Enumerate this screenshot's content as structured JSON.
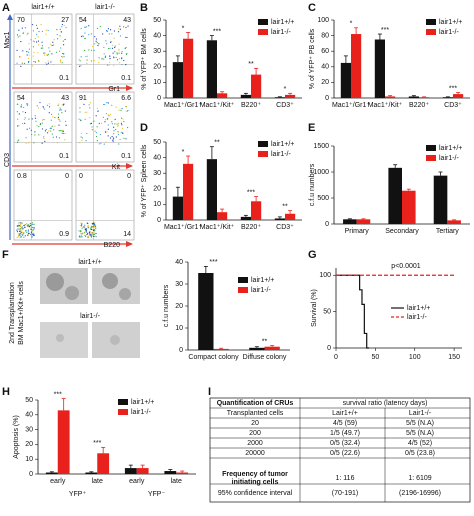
{
  "panel_labels": [
    "A",
    "B",
    "C",
    "D",
    "E",
    "F",
    "G",
    "H",
    "I"
  ],
  "flow": {
    "genotypes": [
      "lair1+/+",
      "lair1-/-"
    ],
    "y_labels": [
      "Mac1",
      "CD3"
    ],
    "x_labels": [
      "Gr1",
      "Kit",
      "B220"
    ],
    "plots": [
      [
        [
          70,
          27,
          0.1
        ],
        [
          54,
          43,
          0.1
        ]
      ],
      [
        [
          54,
          43,
          0.1
        ],
        [
          91,
          6.6,
          0.1
        ]
      ],
      [
        [
          0.8,
          0,
          0.9
        ],
        [
          0,
          0,
          14
        ]
      ]
    ]
  },
  "chart_data": [
    {
      "type": "bar",
      "y_label": "% of YFP⁺ BM cells",
      "categories": [
        "Mac1⁺/Gr1⁺",
        "Mac1⁺/Kit⁺",
        "B220⁺",
        "CD3⁺"
      ],
      "series": [
        {
          "name": "lair1+/+",
          "color": "#111111",
          "values": [
            23,
            37,
            2,
            0.5
          ],
          "errors": [
            4,
            3,
            1,
            0.3
          ]
        },
        {
          "name": "lair1-/-",
          "color": "#e8211d",
          "values": [
            38,
            3,
            15,
            2
          ],
          "errors": [
            4,
            1,
            4,
            1
          ]
        }
      ],
      "annotations": [
        "*",
        "***",
        "**",
        "*"
      ],
      "ylim": [
        0,
        50
      ],
      "yticks": [
        0,
        10,
        20,
        30,
        40,
        50
      ]
    },
    {
      "type": "bar",
      "y_label": "% of YFP⁺ PB cells",
      "categories": [
        "Mac1⁺/Gr1⁺",
        "Mac1⁺/Kit⁺",
        "B220⁺",
        "CD3⁺"
      ],
      "series": [
        {
          "name": "lair1+/+",
          "color": "#111111",
          "values": [
            45,
            75,
            2,
            1
          ],
          "errors": [
            9,
            7,
            1,
            0.5
          ]
        },
        {
          "name": "lair1-/-",
          "color": "#e8211d",
          "values": [
            82,
            2,
            1,
            5
          ],
          "errors": [
            8,
            1,
            0.5,
            2
          ]
        }
      ],
      "annotations": [
        "*",
        "***",
        null,
        "***"
      ],
      "ylim": [
        0,
        100
      ],
      "yticks": [
        0,
        20,
        40,
        60,
        80,
        100
      ]
    },
    {
      "type": "bar",
      "y_label": "% of YFP⁺ Spleen cells",
      "categories": [
        "Mac1⁺/Gr1⁺",
        "Mac1⁺/Kit⁺",
        "B220⁺",
        "CD3⁺"
      ],
      "series": [
        {
          "name": "lair1+/+",
          "color": "#111111",
          "values": [
            15,
            39,
            2,
            1
          ],
          "errors": [
            6,
            8,
            1,
            1
          ]
        },
        {
          "name": "lair1-/-",
          "color": "#e8211d",
          "values": [
            36,
            5,
            12,
            4
          ],
          "errors": [
            5,
            2,
            3,
            2
          ]
        }
      ],
      "annotations": [
        "*",
        "**",
        "***",
        "**"
      ],
      "ylim": [
        0,
        50
      ],
      "yticks": [
        0,
        10,
        20,
        30,
        40,
        50
      ]
    },
    {
      "type": "bar",
      "y_label": "c.f.u numbers",
      "categories": [
        "Primary",
        "Secondary",
        "Tertiary"
      ],
      "series": [
        {
          "name": "lair1+/+",
          "color": "#111111",
          "values": [
            90,
            1080,
            930
          ],
          "errors": [
            10,
            60,
            70
          ]
        },
        {
          "name": "lair1-/-",
          "color": "#e8211d",
          "values": [
            90,
            640,
            70
          ],
          "errors": [
            10,
            30,
            10
          ]
        }
      ],
      "ylim": [
        0,
        1500
      ],
      "yticks": [
        0,
        500,
        1000,
        1500
      ]
    },
    {
      "type": "bar",
      "y_label": "c.f.u numbers",
      "side_label": [
        "2nd Transplantation",
        "BM Mac1+/Kit+ cells"
      ],
      "image_labels": [
        "lair1+/+",
        "lair1-/-"
      ],
      "categories": [
        "Compact colony",
        "Diffuse colony"
      ],
      "series": [
        {
          "name": "lair1+/+",
          "color": "#111111",
          "values": [
            35,
            1
          ],
          "errors": [
            3,
            0.5
          ]
        },
        {
          "name": "lair1-/-",
          "color": "#e8211d",
          "values": [
            0.5,
            1.5
          ],
          "errors": [
            0.3,
            0.5
          ]
        }
      ],
      "annotations": [
        "***",
        "**"
      ],
      "ylim": [
        0,
        40
      ],
      "yticks": [
        0,
        10,
        20,
        30,
        40
      ]
    },
    {
      "type": "line",
      "y_label": "Survival (%)",
      "annotation": "p<0.0001",
      "series": [
        {
          "name": "lair1+/+",
          "color": "#111111",
          "dashed": false,
          "x": [
            0,
            30,
            30,
            33,
            33,
            36,
            36,
            39,
            39,
            42
          ],
          "values": [
            100,
            100,
            80,
            80,
            60,
            60,
            20,
            20,
            0,
            0
          ]
        },
        {
          "name": "lair1-/-",
          "color": "#e8211d",
          "dashed": true,
          "x": [
            0,
            150
          ],
          "values": [
            100,
            100
          ]
        }
      ],
      "xlim": [
        0,
        160
      ],
      "xticks": [
        0,
        50,
        100,
        150
      ],
      "ylim": [
        0,
        110
      ],
      "yticks": [
        0,
        50,
        100
      ]
    },
    {
      "type": "bar",
      "y_label": "Apoptosis (%)",
      "categories": [
        "early",
        "late",
        "early",
        "late"
      ],
      "group_labels": [
        "YFP⁺",
        "YFP⁻"
      ],
      "series": [
        {
          "name": "lair1+/+",
          "color": "#111111",
          "values": [
            1,
            1,
            4,
            2
          ],
          "errors": [
            0.5,
            0.5,
            2,
            1
          ]
        },
        {
          "name": "lair1-/-",
          "color": "#e8211d",
          "values": [
            43,
            14,
            4,
            1
          ],
          "errors": [
            8,
            4,
            2,
            1
          ]
        }
      ],
      "annotations": [
        "***",
        "***",
        null,
        null
      ],
      "ylim": [
        0,
        50
      ],
      "yticks": [
        0,
        10,
        20,
        30,
        40,
        50
      ]
    }
  ],
  "table": {
    "header": [
      "Quantification of CRUs",
      "survival ratio (latency days)"
    ],
    "subheader": [
      "Transplanted cells",
      "Lair1+/+",
      "Lair1-/-"
    ],
    "rows": [
      [
        "20",
        "4/5 (59)",
        "5/5 (N.A)"
      ],
      [
        "200",
        "1/5 (49.7)",
        "5/5 (N.A)"
      ],
      [
        "2000",
        "0/5 (32.4)",
        "4/5 (52)"
      ],
      [
        "20000",
        "0/5 (22.6)",
        "0/5 (23.8)"
      ]
    ],
    "frequency": {
      "label_lines": [
        "Frequency of tumor",
        "initiating cells"
      ],
      "values": [
        "1: 116",
        "1: 6109"
      ]
    },
    "interval": [
      "95% confidence interval",
      "(70-191)",
      "(2196-16996)"
    ]
  }
}
